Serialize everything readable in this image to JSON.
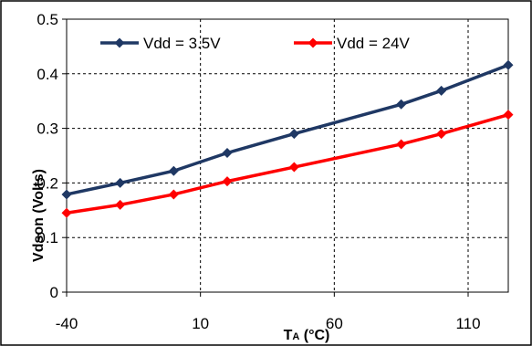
{
  "chart_data": {
    "type": "line",
    "x": [
      -40,
      -20,
      0,
      20,
      45,
      85,
      100,
      125
    ],
    "series": [
      {
        "name": "Vdd = 3.5V",
        "color": "#1f3864",
        "marker": "diamond",
        "values": [
          0.179,
          0.2,
          0.222,
          0.255,
          0.29,
          0.344,
          0.369,
          0.416
        ]
      },
      {
        "name": "Vdd = 24V",
        "color": "#ff0000",
        "marker": "diamond",
        "values": [
          0.145,
          0.16,
          0.179,
          0.203,
          0.229,
          0.271,
          0.29,
          0.325
        ]
      }
    ],
    "xlabel": "TA (°C)",
    "xlabel_main": "T",
    "xlabel_sub": "A",
    "xlabel_rest": " (°C)",
    "ylabel": "Vdson (Volts)",
    "xlim": [
      -40,
      125
    ],
    "ylim": [
      0,
      0.5
    ],
    "xticks": [
      -40,
      10,
      60,
      110
    ],
    "yticks": [
      0,
      0.1,
      0.2,
      0.3,
      0.4,
      0.5
    ],
    "xtick_labels": [
      "-40",
      "10",
      "60",
      "110"
    ],
    "ytick_labels": [
      "0",
      "0.1",
      "0.2",
      "0.3",
      "0.4",
      "0.5"
    ],
    "grid": "dashed vertical and horizontal",
    "legend_position": "top"
  }
}
